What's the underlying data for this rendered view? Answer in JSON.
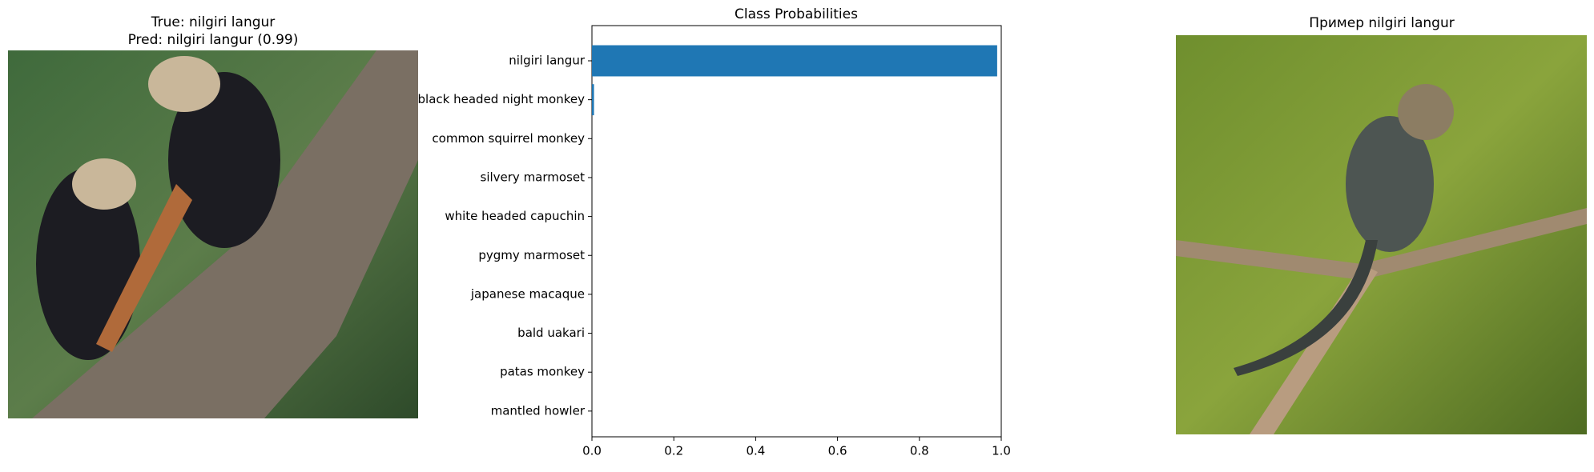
{
  "left_panel": {
    "title_lines": [
      "True: nilgiri langur",
      "Pred: nilgiri langur (0.99)"
    ]
  },
  "right_panel": {
    "title": "Пример nilgiri langur"
  },
  "chart_data": {
    "type": "barh",
    "title": "Class Probabilities",
    "categories": [
      "nilgiri langur",
      "black headed night monkey",
      "common squirrel monkey",
      "silvery marmoset",
      "white headed capuchin",
      "pygmy marmoset",
      "japanese macaque",
      "bald uakari",
      "patas monkey",
      "mantled howler"
    ],
    "values": [
      0.99,
      0.005,
      0,
      0,
      0,
      0,
      0,
      0,
      0,
      0
    ],
    "color": "#1f77b4",
    "xlim": [
      0,
      1
    ],
    "xticks": [
      {
        "value": 0,
        "label": "0.0"
      },
      0.2,
      0.4,
      0.6,
      0.8,
      {
        "value": 1,
        "label": "1.0"
      }
    ],
    "grid": false
  }
}
